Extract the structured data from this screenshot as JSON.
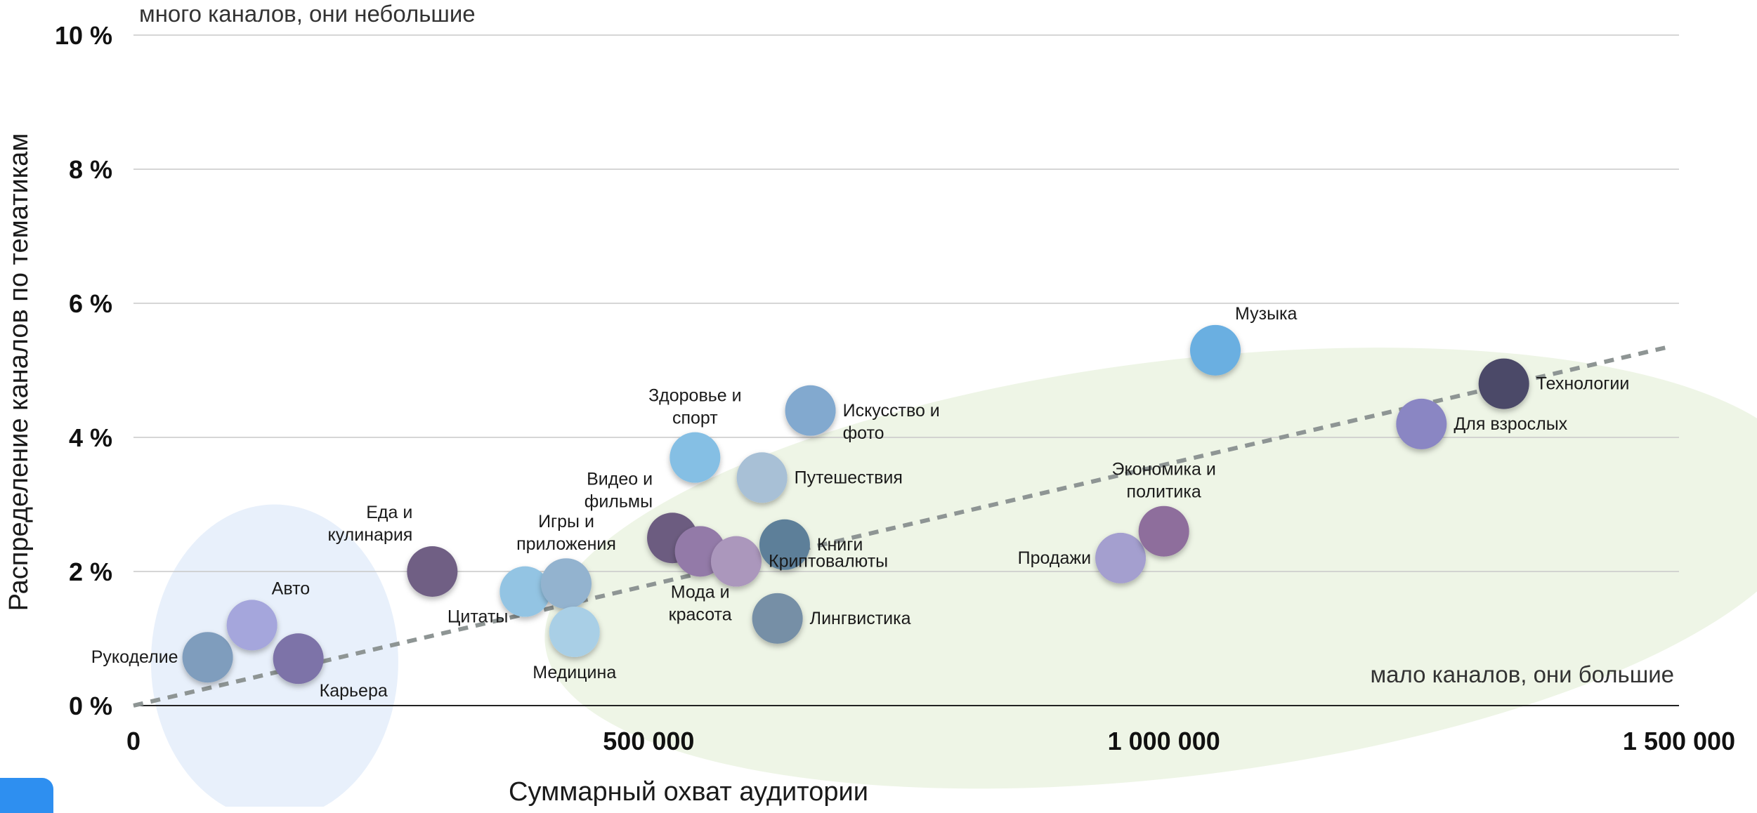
{
  "chart_data": {
    "type": "scatter",
    "title": "",
    "xlabel": "Суммарный охват аудитории",
    "ylabel": "Распределение каналов по тематикам",
    "xlim": [
      0,
      1500000
    ],
    "ylim": [
      0,
      10
    ],
    "x_ticks": [
      {
        "value": 0,
        "label": "0"
      },
      {
        "value": 500000,
        "label": "500 000"
      },
      {
        "value": 1000000,
        "label": "1 000 000"
      },
      {
        "value": 1500000,
        "label": "1 500 000"
      }
    ],
    "y_ticks": [
      {
        "value": 0,
        "label": "0 %"
      },
      {
        "value": 2,
        "label": "2 %"
      },
      {
        "value": 4,
        "label": "4 %"
      },
      {
        "value": 6,
        "label": "6 %"
      },
      {
        "value": 8,
        "label": "8 %"
      },
      {
        "value": 10,
        "label": "10 %"
      }
    ],
    "grid": true,
    "annotations": {
      "top_left": "много каналов, они небольшие",
      "bottom_right": "мало каналов, они большие"
    },
    "trendline": {
      "from": [
        0,
        0
      ],
      "to": [
        1490000,
        5.35
      ],
      "style": "dashed"
    },
    "regions": [
      {
        "name": "small",
        "color": "#e8f0fb",
        "cx": 137000,
        "cy": 0.65,
        "rx": 120000,
        "ry": 2.35
      },
      {
        "name": "large",
        "color": "#eef5e6",
        "cx": 1015000,
        "cy": 2.05,
        "rx": 620000,
        "ry": 3.1,
        "rotate_deg": -7
      }
    ],
    "points": [
      {
        "label": "Рукоделие",
        "x": 72000,
        "y": 0.72,
        "color": "#7f9dbd",
        "label_side": "left"
      },
      {
        "label": "Авто",
        "x": 115000,
        "y": 1.2,
        "color": "#a5a6dc",
        "label_side": "above-right"
      },
      {
        "label": "Карьера",
        "x": 160000,
        "y": 0.7,
        "color": "#7d73a8",
        "label_side": "below-right"
      },
      {
        "label": "Еда и кулинария",
        "x": 290000,
        "y": 2.0,
        "color": "#6f5f84",
        "label_side": "above-left"
      },
      {
        "label": "Цитаты",
        "x": 380000,
        "y": 1.7,
        "color": "#93c4e3",
        "label_side": "below-left"
      },
      {
        "label": "Игры и приложения",
        "x": 420000,
        "y": 1.82,
        "color": "#93b3cf",
        "label_side": "above"
      },
      {
        "label": "Медицина",
        "x": 428000,
        "y": 1.1,
        "color": "#a9cfe6",
        "label_side": "below"
      },
      {
        "label": "Видео и фильмы",
        "x": 523000,
        "y": 2.5,
        "color": "#6c5c80",
        "label_side": "above-left"
      },
      {
        "label": "Мода и красота",
        "x": 550000,
        "y": 2.3,
        "color": "#937aa8",
        "label_side": "below"
      },
      {
        "label": "Здоровье и спорт",
        "x": 545000,
        "y": 3.7,
        "color": "#85bfe4",
        "label_side": "above"
      },
      {
        "label": "Криптовалюты",
        "x": 585000,
        "y": 2.15,
        "color": "#ab97bc",
        "label_side": "right"
      },
      {
        "label": "Путешествия",
        "x": 610000,
        "y": 3.4,
        "color": "#a8c0d6",
        "label_side": "right"
      },
      {
        "label": "Книги",
        "x": 632000,
        "y": 2.4,
        "color": "#5d7f99",
        "label_side": "right"
      },
      {
        "label": "Лингвистика",
        "x": 625000,
        "y": 1.3,
        "color": "#768fa6",
        "label_side": "right"
      },
      {
        "label": "Искусство и фото",
        "x": 657000,
        "y": 4.4,
        "color": "#82a9cf",
        "label_side": "right"
      },
      {
        "label": "Продажи",
        "x": 958000,
        "y": 2.2,
        "color": "#a49fcf",
        "label_side": "left"
      },
      {
        "label": "Экономика и политика",
        "x": 1000000,
        "y": 2.6,
        "color": "#8e6e9c",
        "label_side": "above"
      },
      {
        "label": "Музыка",
        "x": 1050000,
        "y": 5.3,
        "color": "#6aafe1",
        "label_side": "above-right"
      },
      {
        "label": "Для взрослых",
        "x": 1250000,
        "y": 4.2,
        "color": "#8a86c3",
        "label_side": "right"
      },
      {
        "label": "Технологии",
        "x": 1330000,
        "y": 4.8,
        "color": "#4b4a67",
        "label_side": "right"
      }
    ]
  }
}
